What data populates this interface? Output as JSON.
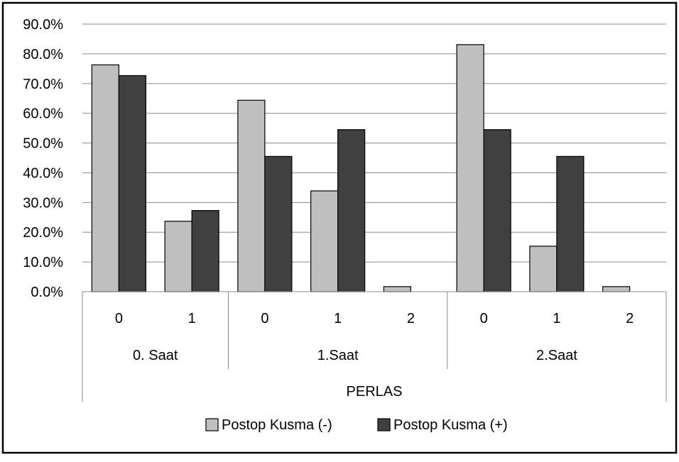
{
  "chart_data": {
    "type": "bar",
    "title": "",
    "ylabel": "",
    "xlabel": "PERLAS",
    "ylim": [
      0,
      90
    ],
    "ytick_step": 10,
    "ytick_labels": [
      "0.0%",
      "10.0%",
      "20.0%",
      "30.0%",
      "40.0%",
      "50.0%",
      "60.0%",
      "70.0%",
      "80.0%",
      "90.0%"
    ],
    "grid": true,
    "legend_position": "bottom",
    "groups": [
      {
        "label": "0. Saat",
        "categories": [
          "0",
          "1"
        ]
      },
      {
        "label": "1.Saat",
        "categories": [
          "0",
          "1",
          "2"
        ]
      },
      {
        "label": "2.Saat",
        "categories": [
          "0",
          "1",
          "2"
        ]
      }
    ],
    "series": [
      {
        "name": "Postop Kusma (-)",
        "color": "#bfbfbf",
        "values": [
          76.3,
          23.7,
          64.4,
          33.9,
          1.7,
          83.1,
          15.3,
          1.7
        ]
      },
      {
        "name": "Postop Kusma (+)",
        "color": "#404040",
        "values": [
          72.7,
          27.3,
          45.5,
          54.5,
          0,
          54.5,
          45.5,
          0
        ]
      }
    ]
  }
}
